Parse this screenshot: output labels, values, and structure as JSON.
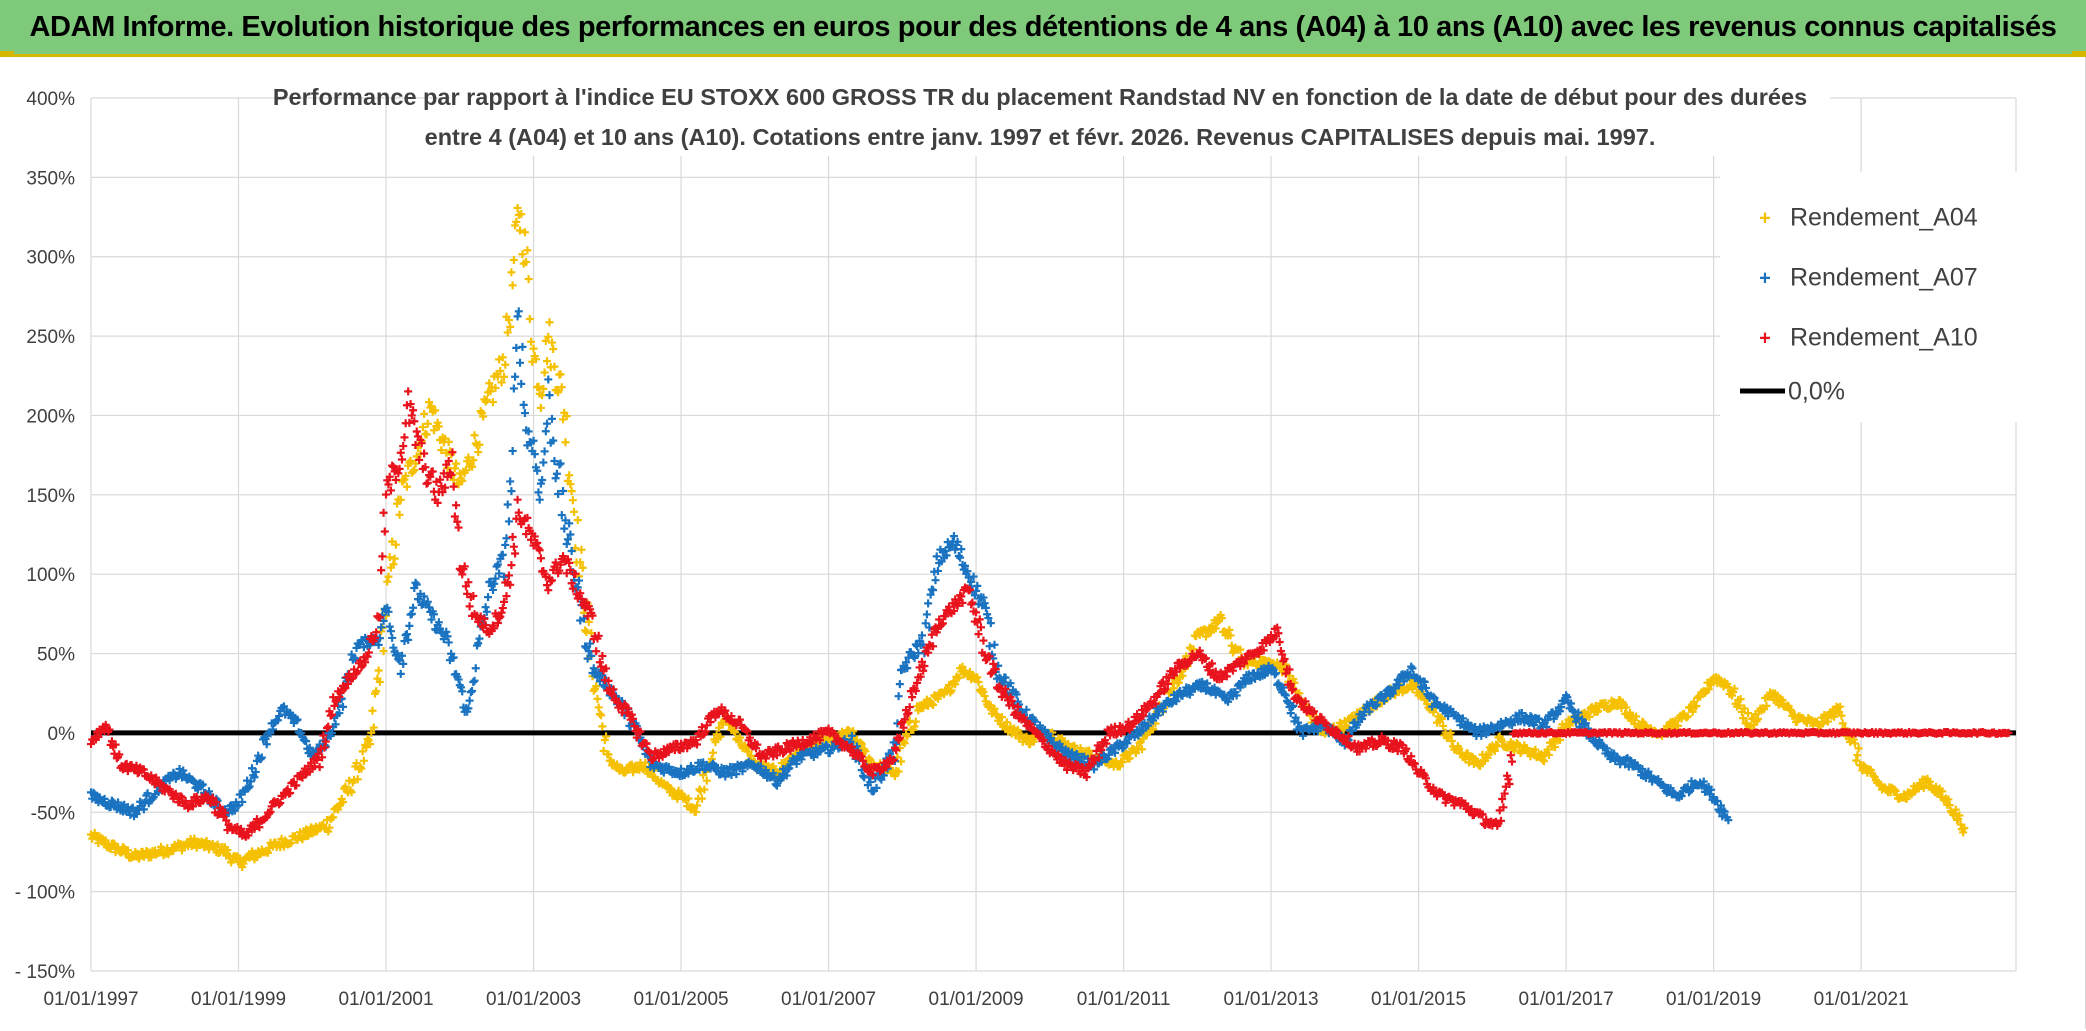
{
  "header": {
    "title": "ADAM Informe. Evolution historique des performances en euros pour des détentions de 4 ans (A04) à 10 ans (A10) avec les revenus connus capitalisés"
  },
  "chart_data": {
    "type": "scatter",
    "title_line1": "Performance par rapport à l'indice EU STOXX 600 GROSS TR  du placement Randstad NV en fonction de la date de début pour des durées",
    "title_line2": "entre 4 (A04) et 10 ans (A10). Cotations entre janv. 1997 et févr. 2026. Revenus CAPITALISES depuis mai. 1997.",
    "y_ticks": [
      {
        "value": 400,
        "label": "400%"
      },
      {
        "value": 350,
        "label": "350%"
      },
      {
        "value": 300,
        "label": "300%"
      },
      {
        "value": 250,
        "label": "250%"
      },
      {
        "value": 200,
        "label": "200%"
      },
      {
        "value": 150,
        "label": "150%"
      },
      {
        "value": 100,
        "label": "100%"
      },
      {
        "value": 50,
        "label": "50%"
      },
      {
        "value": 0,
        "label": "0%"
      },
      {
        "value": -50,
        "label": "-50%"
      },
      {
        "value": -100,
        "label": "- 100%"
      },
      {
        "value": -150,
        "label": "- 150%"
      }
    ],
    "x_ticks": [
      {
        "value": 1997,
        "label": "01/01/1997"
      },
      {
        "value": 1999,
        "label": "01/01/1999"
      },
      {
        "value": 2001,
        "label": "01/01/2001"
      },
      {
        "value": 2003,
        "label": "01/01/2003"
      },
      {
        "value": 2005,
        "label": "01/01/2005"
      },
      {
        "value": 2007,
        "label": "01/01/2007"
      },
      {
        "value": 2009,
        "label": "01/01/2009"
      },
      {
        "value": 2011,
        "label": "01/01/2011"
      },
      {
        "value": 2013,
        "label": "01/01/2013"
      },
      {
        "value": 2015,
        "label": "01/01/2015"
      },
      {
        "value": 2017,
        "label": "01/01/2017"
      },
      {
        "value": 2019,
        "label": "01/01/2019"
      },
      {
        "value": 2021,
        "label": "01/01/2021"
      }
    ],
    "xlim": [
      1997,
      2023.1
    ],
    "ylim": [
      -150,
      400
    ],
    "reference_line": {
      "name": "0,0%",
      "value": 0,
      "color": "#000000"
    },
    "series": [
      {
        "name": "Rendement_A04",
        "color": "#f5c000",
        "points": [
          [
            1997.0,
            -65
          ],
          [
            1997.3,
            -72
          ],
          [
            1997.6,
            -78
          ],
          [
            1998.0,
            -74
          ],
          [
            1998.4,
            -69
          ],
          [
            1998.8,
            -74
          ],
          [
            1999.0,
            -82
          ],
          [
            1999.3,
            -75
          ],
          [
            1999.6,
            -69
          ],
          [
            1999.9,
            -64
          ],
          [
            2000.2,
            -58
          ],
          [
            2000.5,
            -35
          ],
          [
            2000.8,
            -5
          ],
          [
            2001.0,
            80
          ],
          [
            2001.2,
            150
          ],
          [
            2001.4,
            175
          ],
          [
            2001.6,
            205
          ],
          [
            2001.8,
            180
          ],
          [
            2002.0,
            155
          ],
          [
            2002.2,
            180
          ],
          [
            2002.4,
            210
          ],
          [
            2002.6,
            235
          ],
          [
            2002.7,
            275
          ],
          [
            2002.8,
            330
          ],
          [
            2002.9,
            300
          ],
          [
            2003.0,
            240
          ],
          [
            2003.1,
            215
          ],
          [
            2003.2,
            250
          ],
          [
            2003.4,
            210
          ],
          [
            2003.6,
            120
          ],
          [
            2003.8,
            40
          ],
          [
            2004.0,
            -15
          ],
          [
            2004.2,
            -25
          ],
          [
            2004.5,
            -20
          ],
          [
            2004.8,
            -35
          ],
          [
            2005.0,
            -40
          ],
          [
            2005.2,
            -48
          ],
          [
            2005.4,
            -15
          ],
          [
            2005.6,
            10
          ],
          [
            2005.8,
            -5
          ],
          [
            2006.0,
            -20
          ],
          [
            2006.3,
            -25
          ],
          [
            2006.6,
            -10
          ],
          [
            2007.0,
            -5
          ],
          [
            2007.3,
            0
          ],
          [
            2007.6,
            -20
          ],
          [
            2007.9,
            -25
          ],
          [
            2008.2,
            15
          ],
          [
            2008.4,
            20
          ],
          [
            2008.6,
            25
          ],
          [
            2008.8,
            40
          ],
          [
            2009.0,
            35
          ],
          [
            2009.2,
            15
          ],
          [
            2009.4,
            5
          ],
          [
            2009.7,
            -5
          ],
          [
            2010.0,
            0
          ],
          [
            2010.3,
            -10
          ],
          [
            2010.6,
            -15
          ],
          [
            2010.9,
            -20
          ],
          [
            2011.2,
            -10
          ],
          [
            2011.5,
            15
          ],
          [
            2011.8,
            40
          ],
          [
            2012.0,
            60
          ],
          [
            2012.3,
            70
          ],
          [
            2012.6,
            45
          ],
          [
            2012.9,
            45
          ],
          [
            2013.2,
            40
          ],
          [
            2013.4,
            20
          ],
          [
            2013.7,
            0
          ],
          [
            2014.0,
            5
          ],
          [
            2014.3,
            15
          ],
          [
            2014.6,
            25
          ],
          [
            2014.9,
            30
          ],
          [
            2015.2,
            15
          ],
          [
            2015.5,
            -10
          ],
          [
            2015.8,
            -20
          ],
          [
            2016.1,
            -5
          ],
          [
            2016.4,
            -10
          ],
          [
            2016.7,
            -15
          ],
          [
            2017.0,
            5
          ],
          [
            2017.4,
            15
          ],
          [
            2017.7,
            20
          ],
          [
            2018.0,
            5
          ],
          [
            2018.3,
            0
          ],
          [
            2018.6,
            10
          ],
          [
            2018.8,
            20
          ],
          [
            2019.0,
            35
          ],
          [
            2019.2,
            30
          ],
          [
            2019.5,
            5
          ],
          [
            2019.8,
            25
          ],
          [
            2020.1,
            10
          ],
          [
            2020.4,
            5
          ],
          [
            2020.7,
            15
          ],
          [
            2021.0,
            -20
          ],
          [
            2021.3,
            -35
          ],
          [
            2021.6,
            -40
          ],
          [
            2021.9,
            -30
          ],
          [
            2022.2,
            -45
          ],
          [
            2022.4,
            -60
          ]
        ]
      },
      {
        "name": "Rendement_A07",
        "color": "#1a73c0",
        "points": [
          [
            1997.0,
            -40
          ],
          [
            1997.3,
            -45
          ],
          [
            1997.6,
            -50
          ],
          [
            1997.9,
            -35
          ],
          [
            1998.2,
            -25
          ],
          [
            1998.5,
            -35
          ],
          [
            1998.8,
            -50
          ],
          [
            1999.0,
            -45
          ],
          [
            1999.2,
            -25
          ],
          [
            1999.4,
            0
          ],
          [
            1999.6,
            15
          ],
          [
            1999.8,
            5
          ],
          [
            2000.0,
            -15
          ],
          [
            2000.2,
            -5
          ],
          [
            2000.4,
            20
          ],
          [
            2000.6,
            55
          ],
          [
            2000.9,
            60
          ],
          [
            2001.0,
            80
          ],
          [
            2001.1,
            55
          ],
          [
            2001.2,
            45
          ],
          [
            2001.4,
            90
          ],
          [
            2001.6,
            75
          ],
          [
            2001.8,
            60
          ],
          [
            2002.0,
            30
          ],
          [
            2002.1,
            10
          ],
          [
            2002.2,
            40
          ],
          [
            2002.4,
            90
          ],
          [
            2002.6,
            110
          ],
          [
            2002.7,
            160
          ],
          [
            2002.8,
            265
          ],
          [
            2002.9,
            190
          ],
          [
            2003.0,
            180
          ],
          [
            2003.1,
            150
          ],
          [
            2003.2,
            210
          ],
          [
            2003.4,
            140
          ],
          [
            2003.6,
            90
          ],
          [
            2003.8,
            40
          ],
          [
            2004.0,
            30
          ],
          [
            2004.3,
            10
          ],
          [
            2004.6,
            -20
          ],
          [
            2005.0,
            -25
          ],
          [
            2005.3,
            -20
          ],
          [
            2005.6,
            -25
          ],
          [
            2006.0,
            -20
          ],
          [
            2006.3,
            -30
          ],
          [
            2006.6,
            -15
          ],
          [
            2007.0,
            -10
          ],
          [
            2007.3,
            -5
          ],
          [
            2007.6,
            -35
          ],
          [
            2007.9,
            -10
          ],
          [
            2008.0,
            40
          ],
          [
            2008.3,
            60
          ],
          [
            2008.5,
            110
          ],
          [
            2008.7,
            120
          ],
          [
            2008.9,
            100
          ],
          [
            2009.1,
            80
          ],
          [
            2009.3,
            40
          ],
          [
            2009.6,
            15
          ],
          [
            2010.0,
            -5
          ],
          [
            2010.3,
            -15
          ],
          [
            2010.6,
            -20
          ],
          [
            2010.9,
            -10
          ],
          [
            2011.2,
            0
          ],
          [
            2011.5,
            15
          ],
          [
            2011.8,
            25
          ],
          [
            2012.1,
            30
          ],
          [
            2012.4,
            20
          ],
          [
            2012.7,
            35
          ],
          [
            2013.0,
            40
          ],
          [
            2013.2,
            25
          ],
          [
            2013.4,
            0
          ],
          [
            2013.7,
            5
          ],
          [
            2014.0,
            -5
          ],
          [
            2014.3,
            15
          ],
          [
            2014.6,
            25
          ],
          [
            2014.9,
            40
          ],
          [
            2015.2,
            20
          ],
          [
            2015.5,
            10
          ],
          [
            2015.8,
            0
          ],
          [
            2016.1,
            5
          ],
          [
            2016.4,
            10
          ],
          [
            2016.7,
            5
          ],
          [
            2017.0,
            20
          ],
          [
            2017.3,
            0
          ],
          [
            2017.6,
            -15
          ],
          [
            2017.9,
            -20
          ],
          [
            2018.2,
            -30
          ],
          [
            2018.5,
            -40
          ],
          [
            2018.8,
            -30
          ],
          [
            2019.0,
            -40
          ],
          [
            2019.2,
            -55
          ]
        ]
      },
      {
        "name": "Rendement_A10",
        "color": "#e8131c",
        "points": [
          [
            1997.0,
            -5
          ],
          [
            1997.2,
            5
          ],
          [
            1997.4,
            -20
          ],
          [
            1997.7,
            -25
          ],
          [
            1998.0,
            -35
          ],
          [
            1998.3,
            -45
          ],
          [
            1998.6,
            -40
          ],
          [
            1998.9,
            -60
          ],
          [
            1999.1,
            -65
          ],
          [
            1999.3,
            -55
          ],
          [
            1999.5,
            -45
          ],
          [
            1999.7,
            -35
          ],
          [
            1999.9,
            -25
          ],
          [
            2000.1,
            -15
          ],
          [
            2000.3,
            20
          ],
          [
            2000.5,
            35
          ],
          [
            2000.7,
            45
          ],
          [
            2000.9,
            70
          ],
          [
            2001.0,
            150
          ],
          [
            2001.2,
            175
          ],
          [
            2001.3,
            205
          ],
          [
            2001.5,
            170
          ],
          [
            2001.7,
            150
          ],
          [
            2001.9,
            170
          ],
          [
            2002.0,
            110
          ],
          [
            2002.2,
            75
          ],
          [
            2002.4,
            65
          ],
          [
            2002.6,
            80
          ],
          [
            2002.8,
            140
          ],
          [
            2003.0,
            120
          ],
          [
            2003.2,
            95
          ],
          [
            2003.4,
            110
          ],
          [
            2003.6,
            90
          ],
          [
            2003.8,
            70
          ],
          [
            2004.0,
            30
          ],
          [
            2004.3,
            10
          ],
          [
            2004.6,
            -15
          ],
          [
            2004.9,
            -10
          ],
          [
            2005.2,
            -5
          ],
          [
            2005.5,
            15
          ],
          [
            2005.8,
            5
          ],
          [
            2006.1,
            -15
          ],
          [
            2006.4,
            -10
          ],
          [
            2006.7,
            -5
          ],
          [
            2007.0,
            0
          ],
          [
            2007.3,
            -10
          ],
          [
            2007.6,
            -25
          ],
          [
            2007.9,
            -15
          ],
          [
            2008.1,
            20
          ],
          [
            2008.3,
            45
          ],
          [
            2008.5,
            70
          ],
          [
            2008.7,
            80
          ],
          [
            2008.9,
            90
          ],
          [
            2009.1,
            55
          ],
          [
            2009.3,
            30
          ],
          [
            2009.6,
            10
          ],
          [
            2009.9,
            -5
          ],
          [
            2010.2,
            -20
          ],
          [
            2010.5,
            -25
          ],
          [
            2010.8,
            0
          ],
          [
            2011.1,
            5
          ],
          [
            2011.4,
            20
          ],
          [
            2011.7,
            40
          ],
          [
            2012.0,
            50
          ],
          [
            2012.3,
            35
          ],
          [
            2012.6,
            45
          ],
          [
            2012.9,
            55
          ],
          [
            2013.1,
            65
          ],
          [
            2013.3,
            25
          ],
          [
            2013.6,
            10
          ],
          [
            2013.9,
            0
          ],
          [
            2014.2,
            -10
          ],
          [
            2014.5,
            -5
          ],
          [
            2014.8,
            -10
          ],
          [
            2015.0,
            -25
          ],
          [
            2015.3,
            -40
          ],
          [
            2015.6,
            -45
          ],
          [
            2015.9,
            -55
          ],
          [
            2016.1,
            -60
          ],
          [
            2016.3,
            0
          ],
          [
            2017.0,
            0
          ],
          [
            2018.0,
            0
          ],
          [
            2019.0,
            0
          ],
          [
            2020.0,
            0
          ],
          [
            2021.0,
            0
          ],
          [
            2022.0,
            0
          ],
          [
            2023.0,
            0
          ]
        ]
      }
    ]
  }
}
